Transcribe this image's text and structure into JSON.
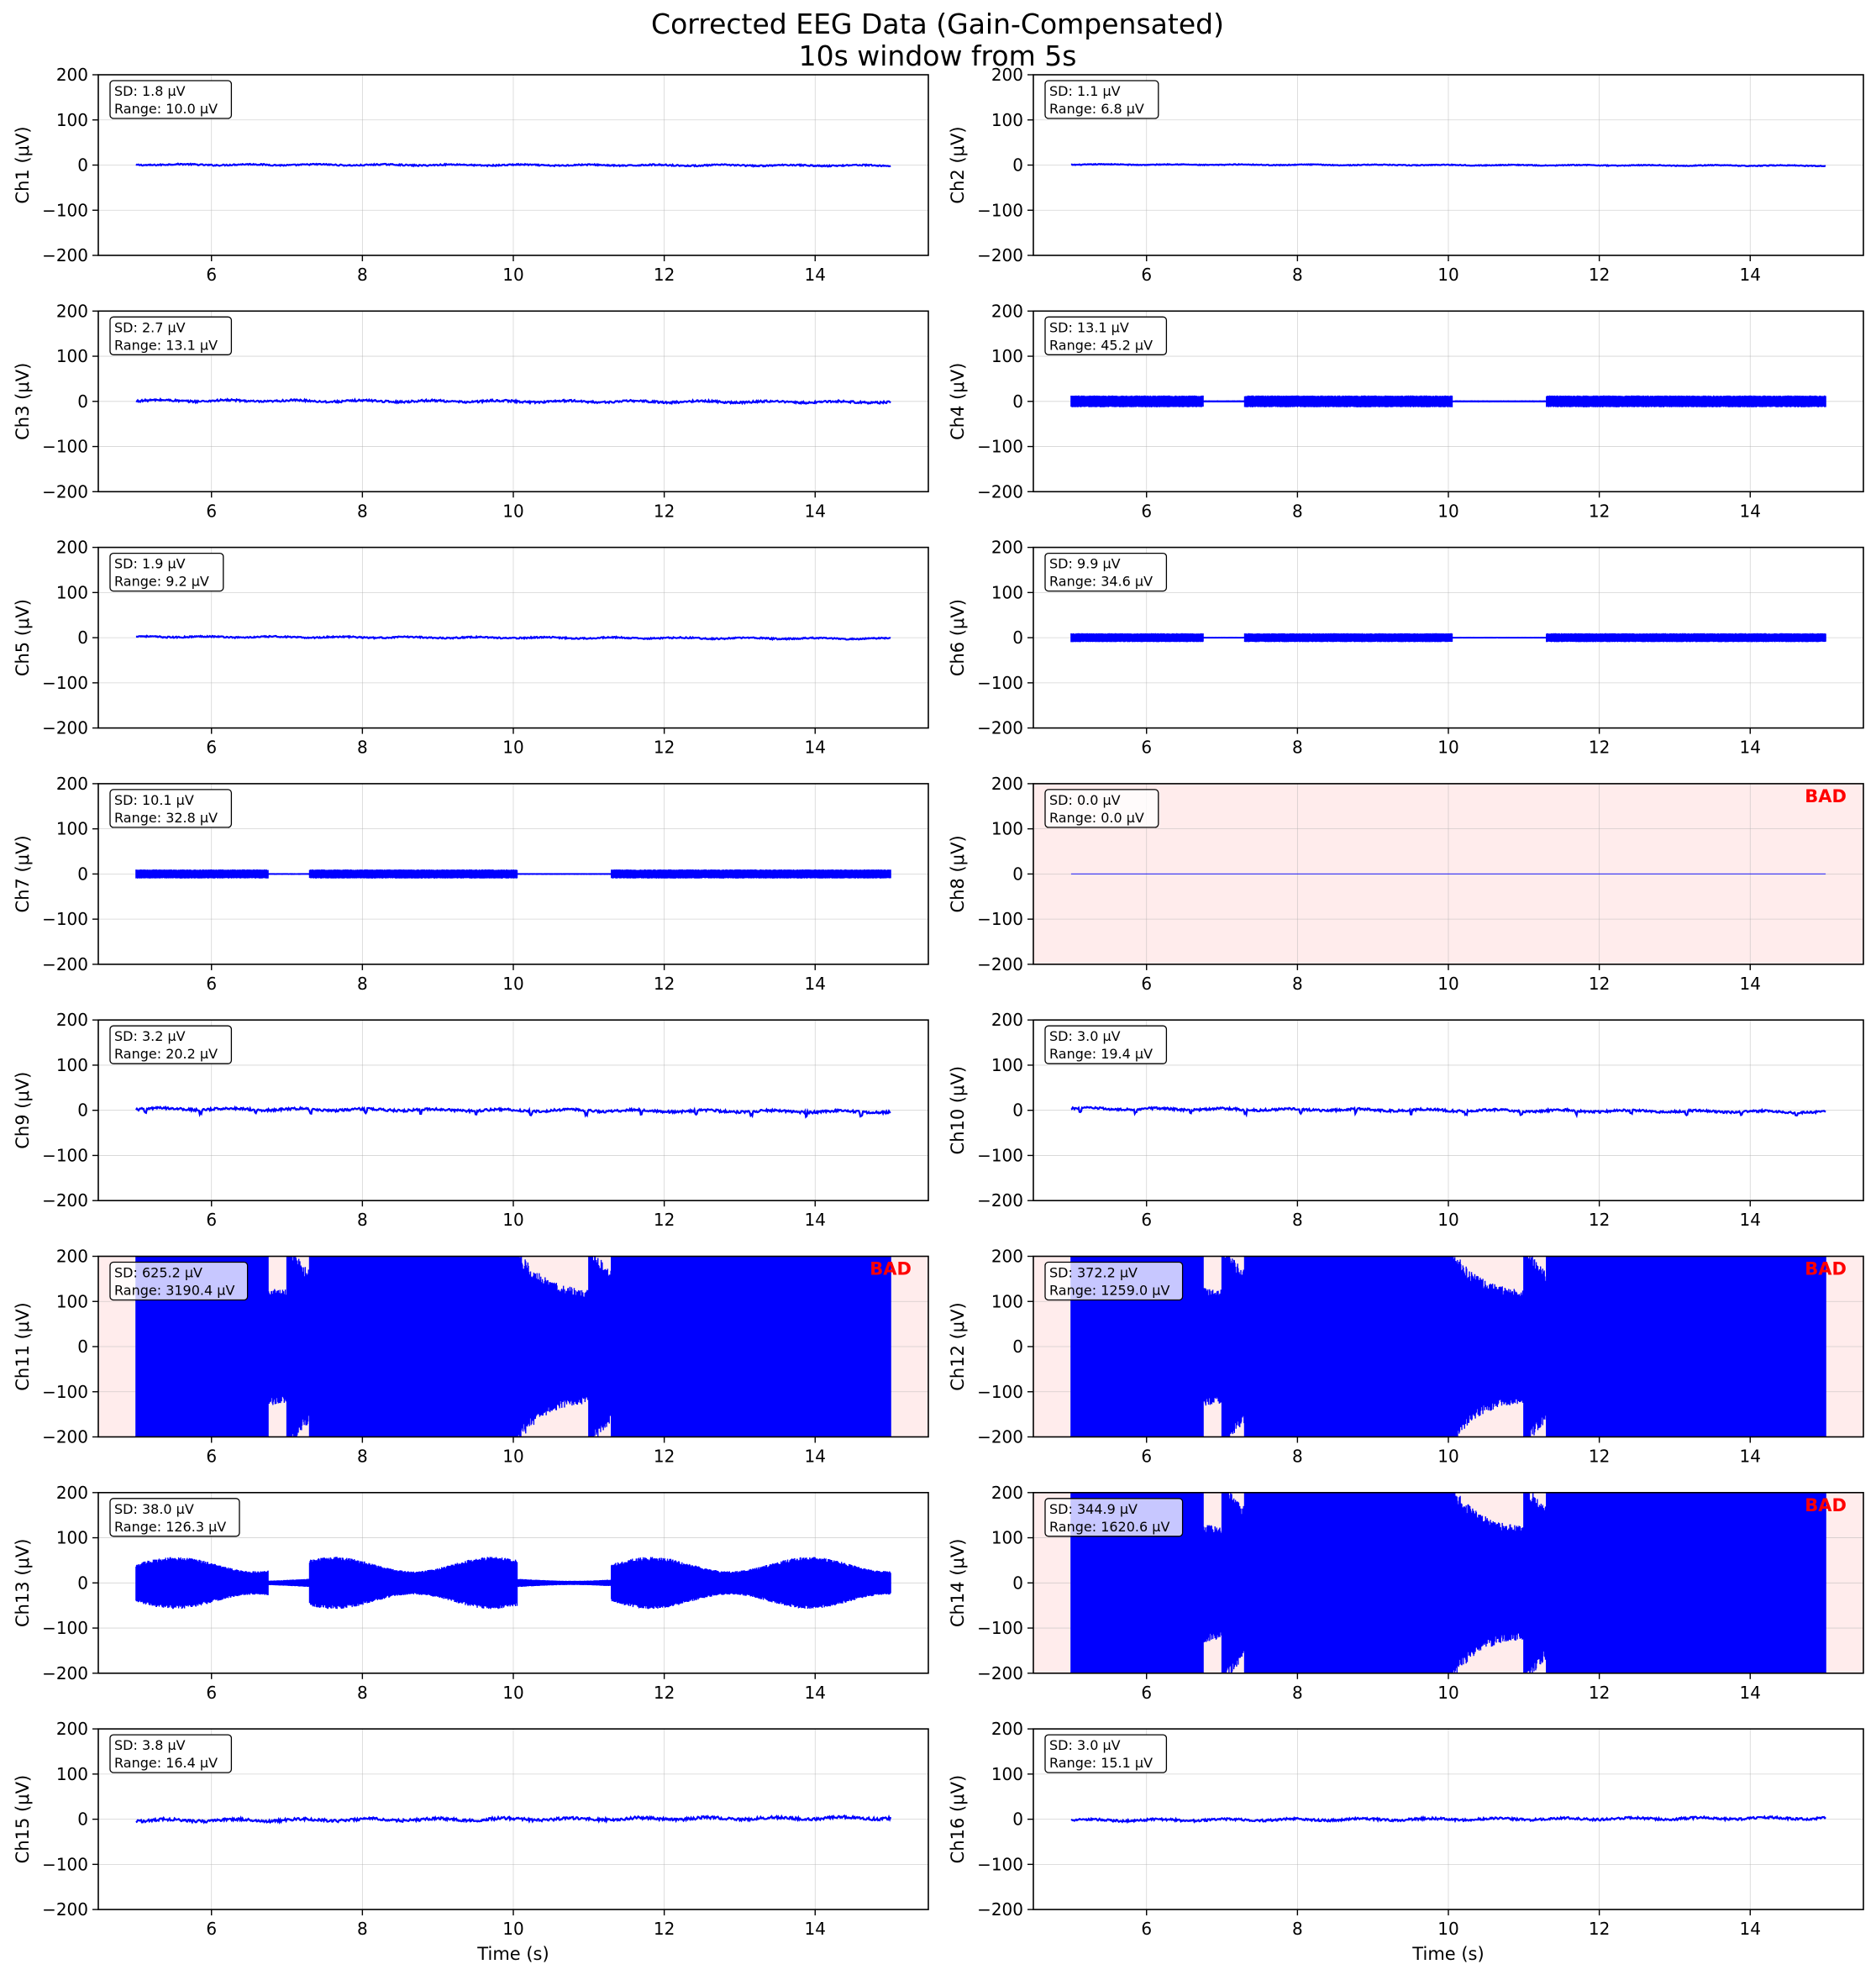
{
  "chart_data": {
    "type": "line",
    "title": "Corrected EEG Data (Gain-Compensated)",
    "subtitle": "10s window from 5s",
    "xlabel": "Time (s)",
    "xlim": [
      4.5,
      15.5
    ],
    "ylim": [
      -200,
      200
    ],
    "x_ticks": [
      6,
      8,
      10,
      12,
      14
    ],
    "y_ticks": [
      200,
      100,
      0,
      -100,
      -200
    ],
    "grid": true,
    "trace_color": "#0000ff",
    "bad_background": "#ffecec",
    "bad_label": "BAD",
    "stat_box": "top-left",
    "bad_label_position": "top-right",
    "signal_time_range": [
      5,
      15
    ],
    "segments": [
      {
        "start": 5.0,
        "end": 6.75
      },
      {
        "start": 7.3,
        "end": 10.05
      },
      {
        "start": 11.3,
        "end": 15.0
      }
    ],
    "channels": [
      {
        "name": "Ch1",
        "ylabel": "Ch1 (μV)",
        "sd": "SD: 1.8 μV",
        "range": "Range: 10.0 μV",
        "sd_value": 1.8,
        "range_value": 10.0,
        "bad": false
      },
      {
        "name": "Ch2",
        "ylabel": "Ch2 (μV)",
        "sd": "SD: 1.1 μV",
        "range": "Range: 6.8 μV",
        "sd_value": 1.1,
        "range_value": 6.8,
        "bad": false
      },
      {
        "name": "Ch3",
        "ylabel": "Ch3 (μV)",
        "sd": "SD: 2.7 μV",
        "range": "Range: 13.1 μV",
        "sd_value": 2.7,
        "range_value": 13.1,
        "bad": false
      },
      {
        "name": "Ch4",
        "ylabel": "Ch4 (μV)",
        "sd": "SD: 13.1 μV",
        "range": "Range: 45.2 μV",
        "sd_value": 13.1,
        "range_value": 45.2,
        "bad": false
      },
      {
        "name": "Ch5",
        "ylabel": "Ch5 (μV)",
        "sd": "SD: 1.9 μV",
        "range": "Range: 9.2 μV",
        "sd_value": 1.9,
        "range_value": 9.2,
        "bad": false
      },
      {
        "name": "Ch6",
        "ylabel": "Ch6 (μV)",
        "sd": "SD: 9.9 μV",
        "range": "Range: 34.6 μV",
        "sd_value": 9.9,
        "range_value": 34.6,
        "bad": false
      },
      {
        "name": "Ch7",
        "ylabel": "Ch7 (μV)",
        "sd": "SD: 10.1 μV",
        "range": "Range: 32.8 μV",
        "sd_value": 10.1,
        "range_value": 32.8,
        "bad": false
      },
      {
        "name": "Ch8",
        "ylabel": "Ch8 (μV)",
        "sd": "SD: 0.0 μV",
        "range": "Range: 0.0 μV",
        "sd_value": 0.0,
        "range_value": 0.0,
        "bad": true
      },
      {
        "name": "Ch9",
        "ylabel": "Ch9 (μV)",
        "sd": "SD: 3.2 μV",
        "range": "Range: 20.2 μV",
        "sd_value": 3.2,
        "range_value": 20.2,
        "bad": false
      },
      {
        "name": "Ch10",
        "ylabel": "Ch10 (μV)",
        "sd": "SD: 3.0 μV",
        "range": "Range: 19.4 μV",
        "sd_value": 3.0,
        "range_value": 19.4,
        "bad": false
      },
      {
        "name": "Ch11",
        "ylabel": "Ch11 (μV)",
        "sd": "SD: 625.2 μV",
        "range": "Range: 3190.4 μV",
        "sd_value": 625.2,
        "range_value": 3190.4,
        "bad": true
      },
      {
        "name": "Ch12",
        "ylabel": "Ch12 (μV)",
        "sd": "SD: 372.2 μV",
        "range": "Range: 1259.0 μV",
        "sd_value": 372.2,
        "range_value": 1259.0,
        "bad": true
      },
      {
        "name": "Ch13",
        "ylabel": "Ch13 (μV)",
        "sd": "SD: 38.0 μV",
        "range": "Range: 126.3 μV",
        "sd_value": 38.0,
        "range_value": 126.3,
        "bad": false
      },
      {
        "name": "Ch14",
        "ylabel": "Ch14 (μV)",
        "sd": "SD: 344.9 μV",
        "range": "Range: 1620.6 μV",
        "sd_value": 344.9,
        "range_value": 1620.6,
        "bad": true
      },
      {
        "name": "Ch15",
        "ylabel": "Ch15 (μV)",
        "sd": "SD: 3.8 μV",
        "range": "Range: 16.4 μV",
        "sd_value": 3.8,
        "range_value": 16.4,
        "bad": false
      },
      {
        "name": "Ch16",
        "ylabel": "Ch16 (μV)",
        "sd": "SD: 3.0 μV",
        "range": "Range: 15.1 μV",
        "sd_value": 3.0,
        "range_value": 15.1,
        "bad": false
      }
    ]
  }
}
